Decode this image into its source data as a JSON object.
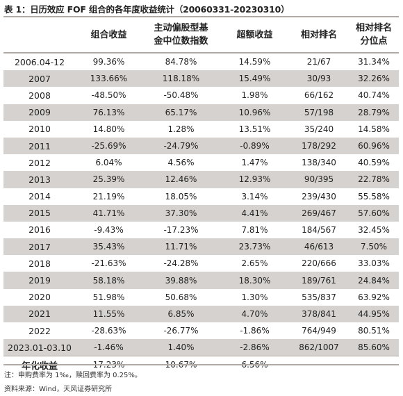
{
  "title": "表 1：日历效应 FOF 组合的各年度收益统计（20060331-20230310）",
  "headers": {
    "period": "",
    "portfolio_return_line1": "组合收益",
    "portfolio_return_line2": "",
    "fund_index_line1": "主动偏股型基",
    "fund_index_line2": "金中位数指数",
    "excess_return_line1": "超额收益",
    "excess_return_line2": "",
    "rank_line1": "相对排名",
    "rank_line2": "",
    "percentile_line1": "相对排名",
    "percentile_line2": "分位点"
  },
  "rows": [
    {
      "period": "2006.04-12",
      "portfolio": "99.36%",
      "index": "84.78%",
      "excess": "14.59%",
      "rank": "21/67",
      "pct": "31.34%",
      "shaded": false
    },
    {
      "period": "2007",
      "portfolio": "133.66%",
      "index": "118.18%",
      "excess": "15.49%",
      "rank": "30/93",
      "pct": "32.26%",
      "shaded": true
    },
    {
      "period": "2008",
      "portfolio": "-48.50%",
      "index": "-50.48%",
      "excess": "1.98%",
      "rank": "66/162",
      "pct": "40.74%",
      "shaded": false
    },
    {
      "period": "2009",
      "portfolio": "76.13%",
      "index": "65.17%",
      "excess": "10.96%",
      "rank": "57/198",
      "pct": "28.79%",
      "shaded": true
    },
    {
      "period": "2010",
      "portfolio": "14.80%",
      "index": "1.28%",
      "excess": "13.51%",
      "rank": "35/240",
      "pct": "14.58%",
      "shaded": false
    },
    {
      "period": "2011",
      "portfolio": "-25.69%",
      "index": "-24.79%",
      "excess": "-0.89%",
      "rank": "178/292",
      "pct": "60.96%",
      "shaded": true
    },
    {
      "period": "2012",
      "portfolio": "6.04%",
      "index": "4.56%",
      "excess": "1.47%",
      "rank": "138/340",
      "pct": "40.59%",
      "shaded": false
    },
    {
      "period": "2013",
      "portfolio": "25.39%",
      "index": "12.46%",
      "excess": "12.93%",
      "rank": "90/395",
      "pct": "22.78%",
      "shaded": true
    },
    {
      "period": "2014",
      "portfolio": "21.19%",
      "index": "18.05%",
      "excess": "3.14%",
      "rank": "239/430",
      "pct": "55.58%",
      "shaded": false
    },
    {
      "period": "2015",
      "portfolio": "41.71%",
      "index": "37.30%",
      "excess": "4.41%",
      "rank": "269/467",
      "pct": "57.60%",
      "shaded": true
    },
    {
      "period": "2016",
      "portfolio": "-9.43%",
      "index": "-17.23%",
      "excess": "7.81%",
      "rank": "184/567",
      "pct": "32.45%",
      "shaded": false
    },
    {
      "period": "2017",
      "portfolio": "35.43%",
      "index": "11.71%",
      "excess": "23.73%",
      "rank": "46/613",
      "pct": "7.50%",
      "shaded": true
    },
    {
      "period": "2018",
      "portfolio": "-21.63%",
      "index": "-24.28%",
      "excess": "2.65%",
      "rank": "220/666",
      "pct": "33.03%",
      "shaded": false
    },
    {
      "period": "2019",
      "portfolio": "58.18%",
      "index": "39.88%",
      "excess": "18.30%",
      "rank": "189/761",
      "pct": "24.84%",
      "shaded": true
    },
    {
      "period": "2020",
      "portfolio": "51.98%",
      "index": "50.68%",
      "excess": "1.30%",
      "rank": "535/837",
      "pct": "63.92%",
      "shaded": false
    },
    {
      "period": "2021",
      "portfolio": "11.55%",
      "index": "6.85%",
      "excess": "4.70%",
      "rank": "378/841",
      "pct": "44.95%",
      "shaded": true
    },
    {
      "period": "2022",
      "portfolio": "-28.63%",
      "index": "-26.77%",
      "excess": "-1.86%",
      "rank": "764/949",
      "pct": "80.51%",
      "shaded": false
    },
    {
      "period": "2023.01-03.10",
      "portfolio": "-1.46%",
      "index": "1.40%",
      "excess": "-2.86%",
      "rank": "862/1007",
      "pct": "85.60%",
      "shaded": true
    }
  ],
  "summary": {
    "period": "年化收益",
    "portfolio": "17.23%",
    "index": "10.67%",
    "excess": "6.56%",
    "rank": "",
    "pct": ""
  },
  "note": "注：申购费率为 1‰，赎回费率为 0.25%。",
  "source": "资料来源：Wind，天风证券研究所",
  "colors": {
    "shade": "#d6d2cf",
    "rule": "#b0aaa6"
  }
}
